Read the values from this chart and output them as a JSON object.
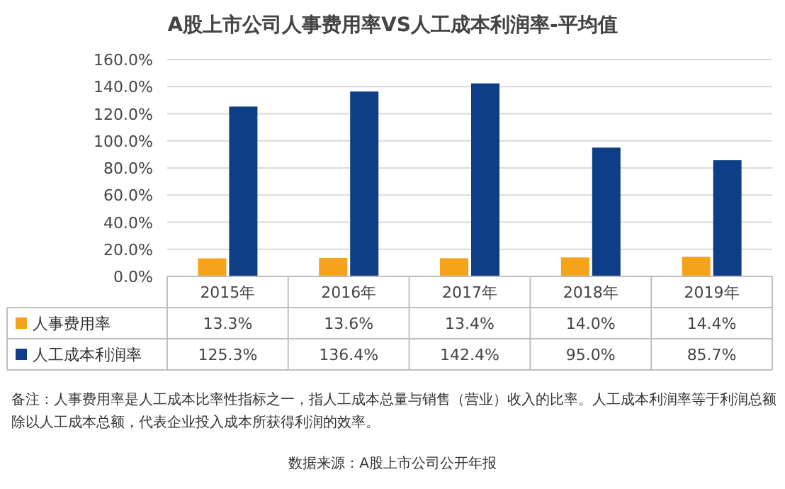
{
  "chart_data": {
    "type": "bar",
    "title": "A股上市公司人事费用率VS人工成本利润率-平均值",
    "categories": [
      "2015年",
      "2016年",
      "2017年",
      "2018年",
      "2019年"
    ],
    "series": [
      {
        "name": "人事费用率",
        "color": "#f5a31a",
        "values": [
          13.3,
          13.6,
          13.4,
          14.0,
          14.4
        ],
        "value_labels": [
          "13.3%",
          "13.6%",
          "13.4%",
          "14.0%",
          "14.4%"
        ]
      },
      {
        "name": "人工成本利润率",
        "color": "#0e3f86",
        "values": [
          125.3,
          136.4,
          142.4,
          95.0,
          85.7
        ],
        "value_labels": [
          "125.3%",
          "136.4%",
          "142.4%",
          "95.0%",
          "85.7%"
        ]
      }
    ],
    "ylim": [
      0,
      160
    ],
    "yticks": [
      {
        "value": 0,
        "label": "0.0%"
      },
      {
        "value": 20,
        "label": "20.0%"
      },
      {
        "value": 40,
        "label": "40.0%"
      },
      {
        "value": 60,
        "label": "60.0%"
      },
      {
        "value": 80,
        "label": "80.0%"
      },
      {
        "value": 100,
        "label": "100.0%"
      },
      {
        "value": 120,
        "label": "120.0%"
      },
      {
        "value": 140,
        "label": "140.0%"
      },
      {
        "value": 160,
        "label": "160.0%"
      }
    ],
    "grid": "y",
    "legend": "bottom",
    "annotations": [
      "备注：人事费用率是人工成本比率性指标之一，指人工成本总量与销售（营业）收入的比率。人工成本利润率等于利润总额除以人工成本总额，代表企业投入成本所获得利润的效率。",
      "数据来源：A股上市公司公开年报"
    ]
  }
}
